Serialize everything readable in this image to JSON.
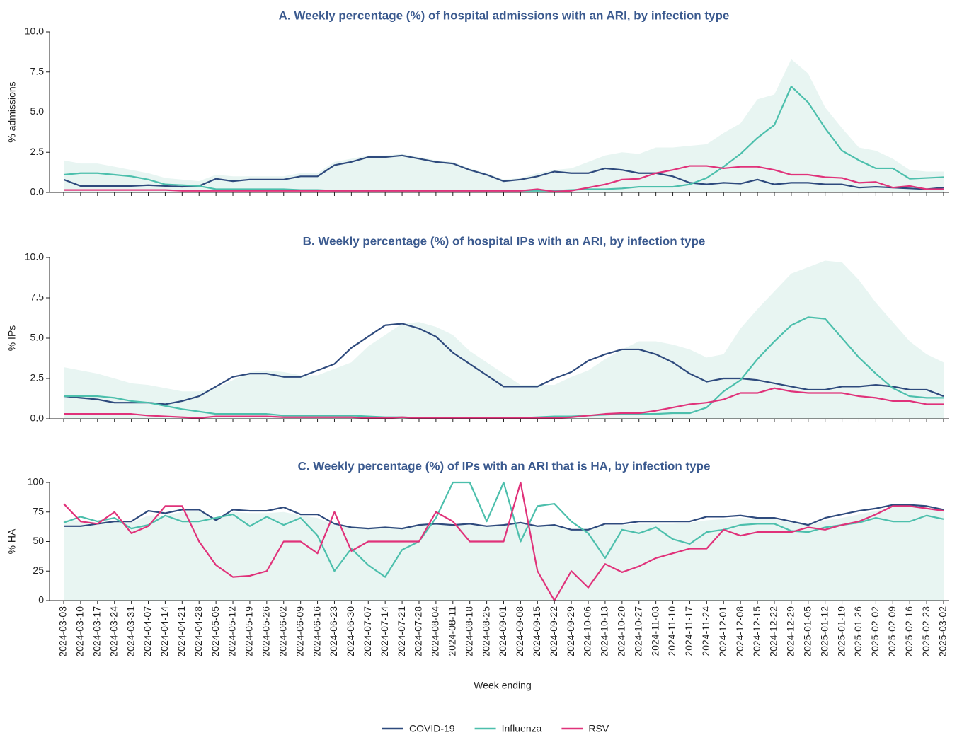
{
  "chart_data": [
    {
      "type": "line",
      "title": "A. Weekly percentage (%) of hospital admissions with an ARI, by infection type",
      "ylabel": "% admissions",
      "ylim": [
        0,
        10
      ],
      "yticks": [
        {
          "value": 0,
          "label": "0.0"
        },
        {
          "value": 2.5,
          "label": "2.5"
        },
        {
          "value": 5,
          "label": "5.0"
        },
        {
          "value": 7.5,
          "label": "7.5"
        },
        {
          "value": 10,
          "label": "10.0"
        }
      ],
      "area": {
        "color": "#e8f5f2",
        "values": [
          2.0,
          1.8,
          1.8,
          1.6,
          1.4,
          1.2,
          0.9,
          0.8,
          0.7,
          1.1,
          1.0,
          1.0,
          1.0,
          1.0,
          1.2,
          1.2,
          1.9,
          2.1,
          2.3,
          2.3,
          2.4,
          2.2,
          2.0,
          1.9,
          1.5,
          1.2,
          0.8,
          0.9,
          1.2,
          1.4,
          1.5,
          1.9,
          2.3,
          2.5,
          2.4,
          2.8,
          2.8,
          2.9,
          3.0,
          3.7,
          4.3,
          5.8,
          6.1,
          8.3,
          7.4,
          5.3,
          4.0,
          2.8,
          2.6,
          2.1,
          1.4,
          1.3,
          1.3
        ]
      },
      "series": [
        {
          "name": "COVID-19",
          "color": "#2e4a7d",
          "values": [
            0.8,
            0.4,
            0.4,
            0.4,
            0.4,
            0.45,
            0.4,
            0.35,
            0.4,
            0.85,
            0.7,
            0.8,
            0.8,
            0.8,
            1.0,
            1.0,
            1.7,
            1.9,
            2.2,
            2.2,
            2.3,
            2.1,
            1.9,
            1.8,
            1.4,
            1.1,
            0.7,
            0.8,
            1.0,
            1.3,
            1.2,
            1.2,
            1.5,
            1.4,
            1.2,
            1.2,
            1.0,
            0.6,
            0.5,
            0.6,
            0.55,
            0.8,
            0.5,
            0.6,
            0.6,
            0.5,
            0.5,
            0.3,
            0.35,
            0.3,
            0.25,
            0.2,
            0.3
          ]
        },
        {
          "name": "Influenza",
          "color": "#4cbfac",
          "values": [
            1.1,
            1.2,
            1.2,
            1.1,
            1.0,
            0.8,
            0.5,
            0.45,
            0.4,
            0.2,
            0.2,
            0.2,
            0.2,
            0.2,
            0.15,
            0.15,
            0.1,
            0.1,
            0.1,
            0.1,
            0.1,
            0.1,
            0.1,
            0.1,
            0.1,
            0.1,
            0.1,
            0.1,
            0.1,
            0.1,
            0.15,
            0.2,
            0.2,
            0.25,
            0.35,
            0.35,
            0.35,
            0.5,
            0.9,
            1.6,
            2.4,
            3.4,
            4.2,
            6.6,
            5.6,
            4.0,
            2.6,
            2.0,
            1.5,
            1.5,
            0.85,
            0.9,
            0.95
          ]
        },
        {
          "name": "RSV",
          "color": "#e0327a",
          "values": [
            0.15,
            0.15,
            0.15,
            0.15,
            0.15,
            0.15,
            0.15,
            0.1,
            0.1,
            0.1,
            0.1,
            0.1,
            0.1,
            0.1,
            0.1,
            0.1,
            0.1,
            0.1,
            0.1,
            0.1,
            0.1,
            0.1,
            0.1,
            0.1,
            0.1,
            0.1,
            0.1,
            0.1,
            0.2,
            0.05,
            0.1,
            0.3,
            0.5,
            0.8,
            0.85,
            1.2,
            1.4,
            1.65,
            1.65,
            1.5,
            1.6,
            1.6,
            1.4,
            1.1,
            1.1,
            0.95,
            0.9,
            0.6,
            0.65,
            0.3,
            0.4,
            0.2,
            0.2
          ]
        }
      ]
    },
    {
      "type": "line",
      "title": "B. Weekly percentage (%) of hospital IPs with an ARI, by infection type",
      "ylabel": "% IPs",
      "ylim": [
        0,
        10
      ],
      "yticks": [
        {
          "value": 0,
          "label": "0.0"
        },
        {
          "value": 2.5,
          "label": "2.5"
        },
        {
          "value": 5,
          "label": "5.0"
        },
        {
          "value": 7.5,
          "label": "7.5"
        },
        {
          "value": 10,
          "label": "10.0"
        }
      ],
      "area": {
        "color": "#e8f5f2",
        "values": [
          3.2,
          3.0,
          2.8,
          2.5,
          2.2,
          2.1,
          1.9,
          1.7,
          1.7,
          1.9,
          2.4,
          2.9,
          3.0,
          2.9,
          2.7,
          2.7,
          3.1,
          3.5,
          4.5,
          5.2,
          5.9,
          6.0,
          5.7,
          5.2,
          4.2,
          3.5,
          2.8,
          2.1,
          2.1,
          2.1,
          2.6,
          3.0,
          3.7,
          4.3,
          4.8,
          4.8,
          4.6,
          4.3,
          3.8,
          4.0,
          5.6,
          6.8,
          7.9,
          9.0,
          9.4,
          9.8,
          9.7,
          8.6,
          7.2,
          6.0,
          4.8,
          4.0,
          3.5
        ]
      },
      "series": [
        {
          "color": "#2e4a7d",
          "values": [
            1.4,
            1.3,
            1.2,
            1.0,
            1.0,
            1.0,
            0.9,
            1.1,
            1.4,
            2.0,
            2.6,
            2.8,
            2.8,
            2.6,
            2.6,
            3.0,
            3.4,
            4.4,
            5.1,
            5.8,
            5.9,
            5.6,
            5.1,
            4.1,
            3.4,
            2.7,
            2.0,
            2.0,
            2.0,
            2.5,
            2.9,
            3.6,
            4.0,
            4.3,
            4.3,
            4.0,
            3.5,
            2.8,
            2.3,
            2.5,
            2.5,
            2.4,
            2.2,
            2.0,
            1.8,
            1.8,
            2.0,
            2.0,
            2.1,
            2.0,
            1.8,
            1.8,
            1.4
          ]
        },
        {
          "color": "#4cbfac",
          "values": [
            1.4,
            1.4,
            1.4,
            1.3,
            1.1,
            1.0,
            0.8,
            0.6,
            0.45,
            0.3,
            0.3,
            0.3,
            0.3,
            0.2,
            0.2,
            0.2,
            0.2,
            0.2,
            0.15,
            0.1,
            0.1,
            0.05,
            0.05,
            0.05,
            0.05,
            0.05,
            0.05,
            0.05,
            0.1,
            0.15,
            0.15,
            0.2,
            0.25,
            0.3,
            0.3,
            0.3,
            0.35,
            0.35,
            0.7,
            1.7,
            2.4,
            3.7,
            4.8,
            5.8,
            6.3,
            6.2,
            5.0,
            3.8,
            2.8,
            1.9,
            1.4,
            1.3,
            1.3
          ]
        },
        {
          "color": "#e0327a",
          "values": [
            0.3,
            0.3,
            0.3,
            0.3,
            0.3,
            0.2,
            0.15,
            0.1,
            0.05,
            0.15,
            0.15,
            0.15,
            0.15,
            0.1,
            0.1,
            0.1,
            0.1,
            0.1,
            0.05,
            0.05,
            0.1,
            0.05,
            0.05,
            0.05,
            0.05,
            0.05,
            0.05,
            0.05,
            0.05,
            0.05,
            0.1,
            0.2,
            0.3,
            0.35,
            0.35,
            0.5,
            0.7,
            0.9,
            1.0,
            1.2,
            1.6,
            1.6,
            1.9,
            1.7,
            1.6,
            1.6,
            1.6,
            1.4,
            1.3,
            1.1,
            1.1,
            0.9,
            0.9
          ]
        }
      ]
    },
    {
      "type": "line",
      "title": "C. Weekly percentage (%) of IPs with an ARI that is HA, by infection type",
      "ylabel": "% HA",
      "xlabel": "Week ending",
      "ylim": [
        0,
        100
      ],
      "yticks": [
        0,
        25,
        50,
        75,
        100
      ],
      "categories": [
        "2024-03-03",
        "2024-03-10",
        "2024-03-17",
        "2024-03-24",
        "2024-03-31",
        "2024-04-07",
        "2024-04-14",
        "2024-04-21",
        "2024-04-28",
        "2024-05-05",
        "2024-05-12",
        "2024-05-19",
        "2024-05-26",
        "2024-06-02",
        "2024-06-09",
        "2024-06-16",
        "2024-06-23",
        "2024-06-30",
        "2024-07-07",
        "2024-07-14",
        "2024-07-21",
        "2024-07-28",
        "2024-08-04",
        "2024-08-11",
        "2024-08-18",
        "2024-08-25",
        "2024-09-01",
        "2024-09-08",
        "2024-09-15",
        "2024-09-22",
        "2024-09-29",
        "2024-10-06",
        "2024-10-13",
        "2024-10-20",
        "2024-10-27",
        "2024-11-03",
        "2024-11-10",
        "2024-11-17",
        "2024-11-24",
        "2024-12-01",
        "2024-12-08",
        "2024-12-15",
        "2024-12-22",
        "2024-12-29",
        "2025-01-05",
        "2025-01-12",
        "2025-01-19",
        "2025-01-26",
        "2025-02-02",
        "2025-02-09",
        "2025-02-16",
        "2025-02-23",
        "2025-03-02"
      ],
      "area": {
        "color": "#e8f5f2",
        "values": [
          68,
          68,
          66,
          68,
          66,
          72,
          72,
          75,
          76,
          70,
          75,
          74,
          74,
          75,
          72,
          70,
          64,
          62,
          61,
          62,
          61,
          63,
          64,
          64,
          64,
          63,
          64,
          66,
          63,
          63,
          60,
          61,
          64,
          64,
          65,
          65,
          65,
          66,
          68,
          69,
          70,
          69,
          69,
          66,
          64,
          68,
          70,
          73,
          76,
          79,
          80,
          79,
          76
        ]
      },
      "series": [
        {
          "color": "#2e4a7d",
          "values": [
            63,
            63,
            65,
            67,
            67,
            76,
            74,
            77,
            77,
            68,
            77,
            76,
            76,
            79,
            73,
            73,
            65,
            62,
            61,
            62,
            61,
            64,
            65,
            64,
            65,
            63,
            64,
            66,
            63,
            64,
            60,
            60,
            65,
            65,
            67,
            67,
            67,
            67,
            71,
            71,
            72,
            70,
            70,
            67,
            64,
            70,
            73,
            76,
            78,
            81,
            81,
            80,
            77
          ]
        },
        {
          "color": "#4cbfac",
          "values": [
            66,
            71,
            67,
            70,
            61,
            64,
            72,
            67,
            67,
            70,
            73,
            63,
            71,
            64,
            70,
            55,
            25,
            44,
            30,
            20,
            43,
            50,
            70,
            100,
            100,
            67,
            100,
            50,
            80,
            82,
            67,
            57,
            36,
            60,
            57,
            62,
            52,
            48,
            58,
            60,
            64,
            65,
            65,
            59,
            58,
            62,
            64,
            66,
            70,
            67,
            67,
            72,
            69
          ]
        },
        {
          "color": "#e0327a",
          "values": [
            82,
            67,
            65,
            75,
            57,
            63,
            80,
            80,
            50,
            30,
            20,
            21,
            25,
            50,
            50,
            40,
            75,
            42,
            50,
            50,
            50,
            50,
            75,
            67,
            50,
            50,
            50,
            100,
            25,
            0,
            25,
            11,
            31,
            24,
            29,
            36,
            40,
            44,
            44,
            60,
            55,
            58,
            58,
            58,
            62,
            60,
            64,
            67,
            73,
            80,
            80,
            78,
            76
          ]
        }
      ]
    }
  ]
}
